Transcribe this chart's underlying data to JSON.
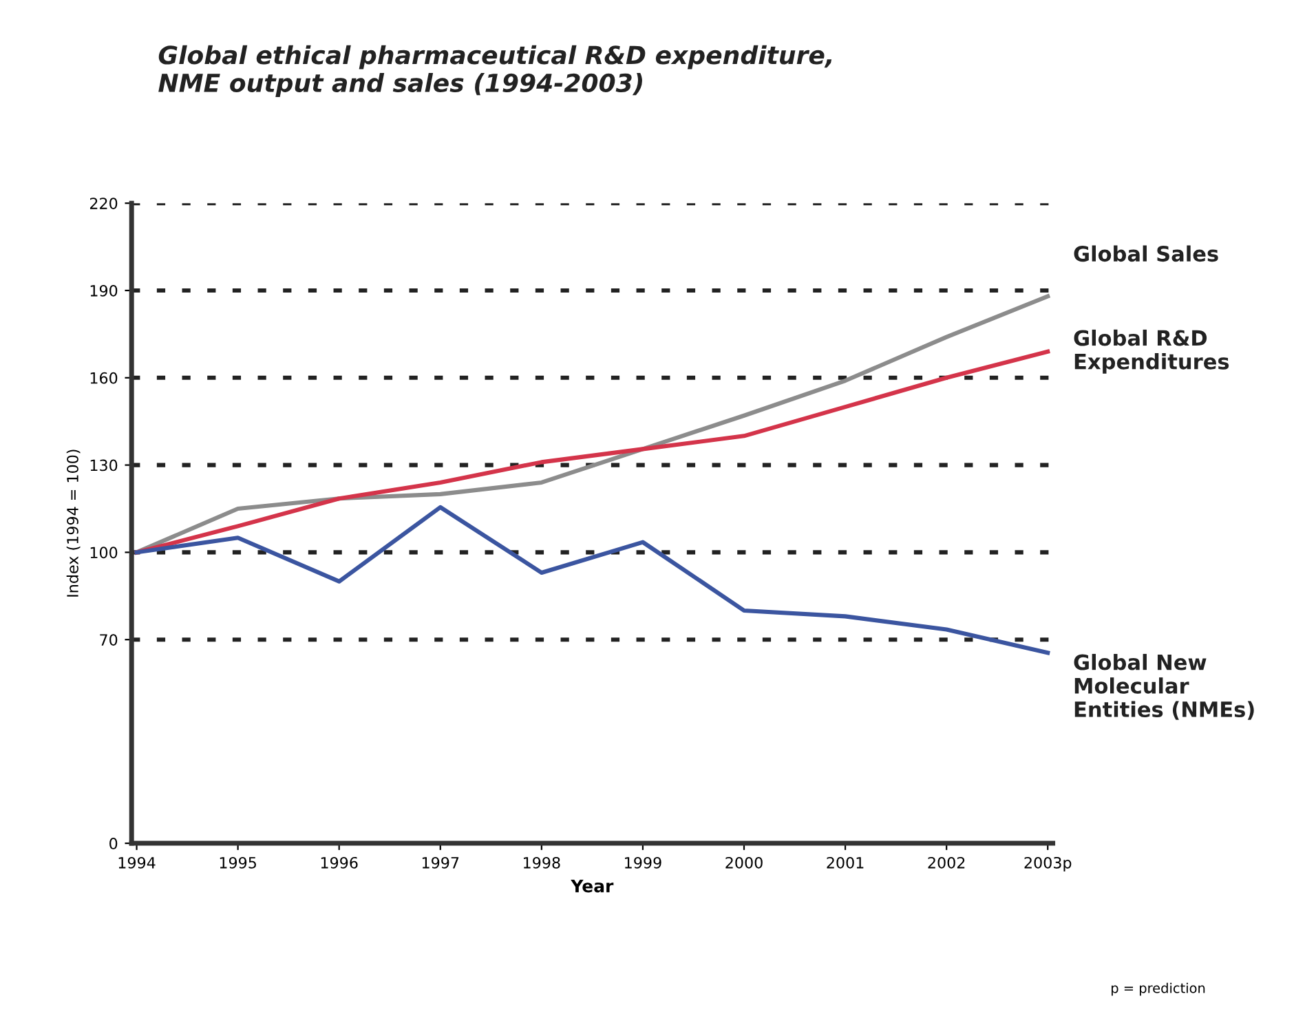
{
  "chart_data": {
    "type": "line",
    "title": "Global ethical pharmaceutical R&D expenditure,\nNME output and sales (1994-2003)",
    "xlabel": "Year",
    "ylabel": "Index (1994 = 100)",
    "categories": [
      "1994",
      "1995",
      "1996",
      "1997",
      "1998",
      "1999",
      "2000",
      "2001",
      "2002",
      "2003p"
    ],
    "series": [
      {
        "name": "Global Sales",
        "color": "#8c8c8c",
        "values": [
          100,
          115,
          118.5,
          120,
          124,
          135.5,
          147,
          159,
          174,
          188
        ]
      },
      {
        "name": "Global R&D\nExpenditures",
        "color": "#d4344a",
        "values": [
          100,
          109,
          118.5,
          124,
          131,
          135.5,
          140,
          150,
          160,
          169
        ]
      },
      {
        "name": "Global New\nMolecular\nEntities (NMEs)",
        "color": "#3b55a0",
        "values": [
          100,
          105,
          90,
          115.5,
          93,
          103.5,
          80,
          78,
          73.5,
          65.5
        ]
      }
    ],
    "ylim": [
      0,
      220
    ],
    "yticks": [
      0,
      70,
      100,
      130,
      160,
      190,
      220
    ],
    "grid": "y",
    "legend": false,
    "marker": "none",
    "line_style": "solid",
    "annotations": [
      "p = prediction"
    ]
  }
}
